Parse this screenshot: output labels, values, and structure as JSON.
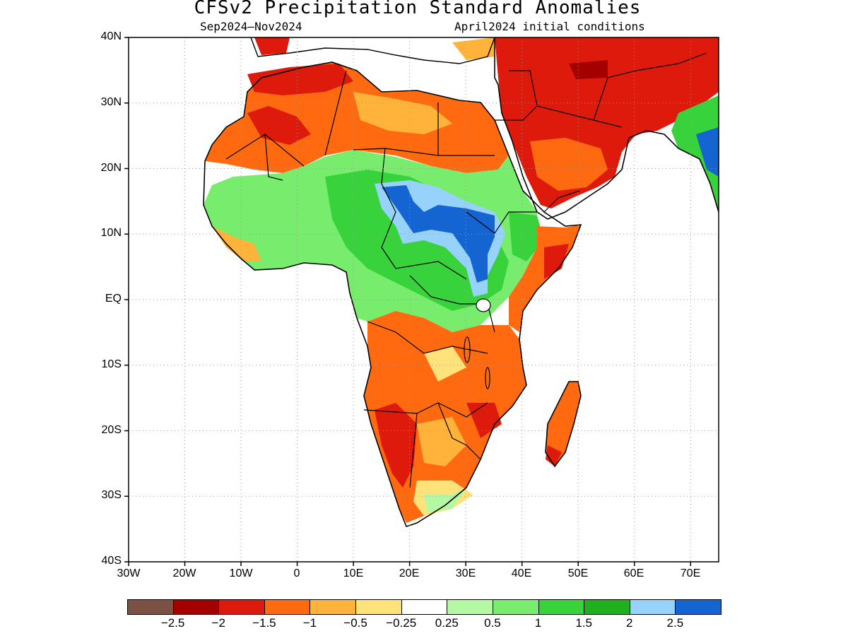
{
  "header": {
    "title": "CFSv2 Precipitation Standard Anomalies",
    "period": "Sep2024–Nov2024",
    "init": "April2024 initial conditions"
  },
  "axes": {
    "y_ticks": [
      "40N",
      "30N",
      "20N",
      "10N",
      "EQ",
      "10S",
      "20S",
      "30S",
      "40S"
    ],
    "x_ticks": [
      "30W",
      "20W",
      "10W",
      "0",
      "10E",
      "20E",
      "30E",
      "40E",
      "50E",
      "60E",
      "70E"
    ],
    "lat_range": [
      -40,
      40
    ],
    "lon_range": [
      -30,
      75
    ],
    "grid": "dotted"
  },
  "colorbar": {
    "colors": [
      "#7d5044",
      "#a50000",
      "#dd1a0c",
      "#ff6a10",
      "#ffb33a",
      "#ffe27a",
      "#ffffff",
      "#b4f8a4",
      "#78ec6c",
      "#37d23c",
      "#20b01e",
      "#96d2fa",
      "#1464d2"
    ],
    "labels": [
      "−2.5",
      "−2",
      "−1.5",
      "−1",
      "−0.5",
      "−0.25",
      "0.25",
      "0.5",
      "1",
      "1.5",
      "2",
      "2.5"
    ]
  }
}
